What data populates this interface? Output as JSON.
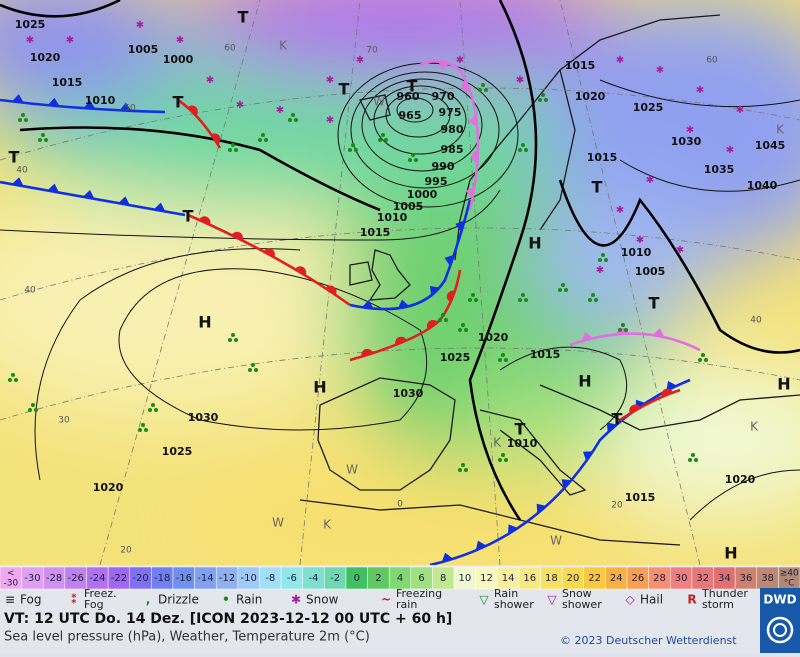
{
  "map": {
    "pressure_labels": [
      "1025",
      "1020",
      "1005",
      "1000",
      "1015",
      "1010",
      "960",
      "970",
      "975",
      "965",
      "980",
      "985",
      "990",
      "995",
      "1000",
      "1005",
      "1010",
      "1015",
      "1015",
      "1020",
      "1025",
      "1030",
      "1045",
      "1035",
      "1040",
      "1015",
      "1010",
      "1005",
      "1020",
      "1015",
      "1025",
      "1030",
      "1030",
      "1025",
      "1020",
      "1010",
      "1015",
      "1020"
    ],
    "isotherm_labels": [
      "60",
      "70",
      "50",
      "40",
      "40",
      "30",
      "20",
      "60",
      "40",
      "0",
      "20"
    ],
    "centers": [
      "T",
      "T",
      "T",
      "T",
      "T",
      "T",
      "T",
      "T",
      "T",
      "T",
      "H",
      "H",
      "H",
      "H",
      "H",
      "H"
    ],
    "air_mass_labels": [
      "K",
      "W",
      "K",
      "K",
      "W",
      "K",
      "W",
      "W",
      "K"
    ]
  },
  "temperature_legend": {
    "below": {
      "symbol": "<",
      "value": -30
    },
    "steps": [
      -30,
      -28,
      -26,
      -24,
      -22,
      -20,
      -18,
      -16,
      -14,
      -12,
      -10,
      -8,
      -6,
      -4,
      -2,
      0,
      2,
      4,
      6,
      8,
      10,
      12,
      14,
      16,
      18,
      20,
      22,
      24,
      26,
      28,
      30,
      32,
      34,
      36,
      38
    ],
    "above": {
      "label": "≥40",
      "unit": "°C"
    },
    "colors": [
      "#f0a8f0",
      "#e0a0f0",
      "#d090f0",
      "#c080f0",
      "#b070f0",
      "#a068f0",
      "#8070f0",
      "#7080f0",
      "#7090f0",
      "#80a0f0",
      "#90b0f0",
      "#a0c8f8",
      "#a0e0f8",
      "#90e8e8",
      "#80e0d0",
      "#70d8b0",
      "#40c060",
      "#60c860",
      "#80d870",
      "#a0e080",
      "#c0e890",
      "#f0f8d0",
      "#f8f8c0",
      "#f8f0a0",
      "#f8e880",
      "#f8e060",
      "#f8d850",
      "#f8c840",
      "#f8b040",
      "#f8a050",
      "#f89070",
      "#f08080",
      "#e87878",
      "#e07070",
      "#d08070",
      "#c08870",
      "#b08878"
    ]
  },
  "weather_legend": [
    [
      "Fog"
    ],
    [
      "Freez.",
      "Fog"
    ],
    [
      "Drizzle"
    ],
    [
      "Rain"
    ],
    [
      "Snow"
    ],
    [
      "Freezing",
      "rain"
    ],
    [
      "Rain",
      "shower"
    ],
    [
      "Snow",
      "shower"
    ],
    [
      "Hail"
    ],
    [
      "Thunder",
      "storm"
    ]
  ],
  "footer": {
    "valid_time": "VT: 12 UTC Do.  14 Dez. [ICON 2023-12-12  00 UTC + 60 h]",
    "description": "Sea level pressure (hPa), Weather, Temperature 2m (°C)",
    "copyright": "© 2023 Deutscher Wetterdienst",
    "logo": "DWD"
  }
}
